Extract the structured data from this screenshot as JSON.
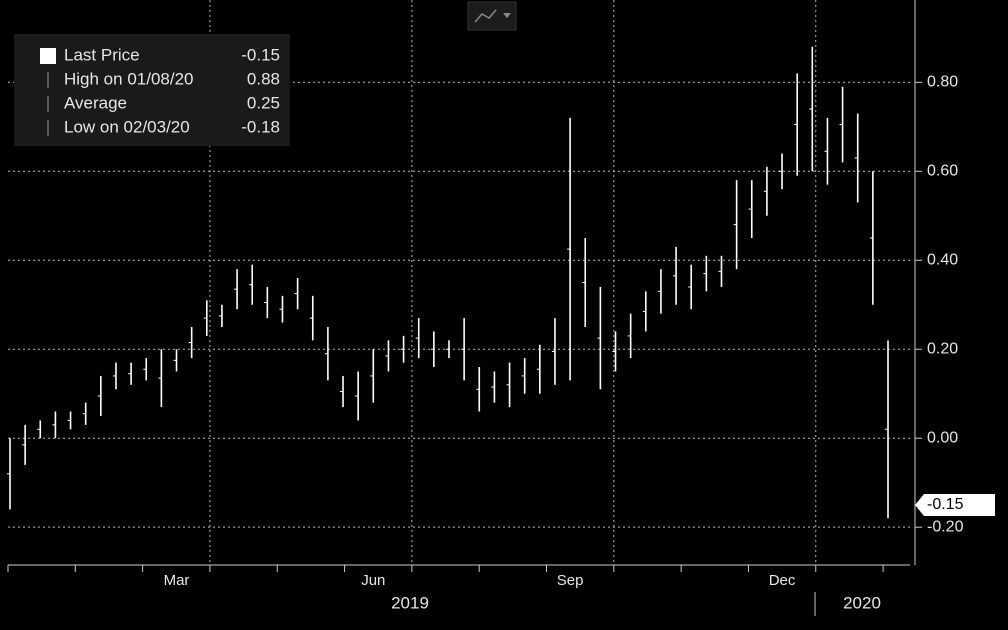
{
  "chart_data": {
    "type": "range-bar",
    "categories": [
      null,
      null,
      null,
      null,
      null,
      null,
      null,
      null,
      null,
      null,
      null,
      "Mar",
      null,
      null,
      null,
      null,
      null,
      null,
      null,
      null,
      null,
      null,
      null,
      null,
      "Jun",
      null,
      null,
      null,
      null,
      null,
      null,
      null,
      null,
      null,
      null,
      null,
      null,
      "Sep",
      null,
      null,
      null,
      null,
      null,
      null,
      null,
      null,
      null,
      null,
      null,
      null,
      null,
      "Dec",
      null,
      null,
      null,
      null,
      null,
      null,
      null
    ],
    "high": [
      0.0,
      0.03,
      0.04,
      0.06,
      0.06,
      0.08,
      0.14,
      0.17,
      0.17,
      0.18,
      0.2,
      0.2,
      0.25,
      0.31,
      0.3,
      0.38,
      0.39,
      0.34,
      0.32,
      0.36,
      0.32,
      0.25,
      0.14,
      0.15,
      0.2,
      0.22,
      0.23,
      0.27,
      0.24,
      0.22,
      0.27,
      0.16,
      0.15,
      0.17,
      0.18,
      0.21,
      0.27,
      0.72,
      0.45,
      0.34,
      0.24,
      0.28,
      0.33,
      0.38,
      0.43,
      0.39,
      0.41,
      0.41,
      0.58,
      0.58,
      0.61,
      0.64,
      0.82,
      0.88,
      0.72,
      0.79,
      0.73,
      0.6,
      0.22
    ],
    "low": [
      -0.16,
      -0.06,
      0.0,
      0.0,
      0.02,
      0.03,
      0.05,
      0.11,
      0.12,
      0.13,
      0.07,
      0.15,
      0.18,
      0.23,
      0.25,
      0.29,
      0.3,
      0.27,
      0.26,
      0.29,
      0.22,
      0.13,
      0.07,
      0.04,
      0.08,
      0.15,
      0.17,
      0.18,
      0.16,
      0.18,
      0.13,
      0.06,
      0.08,
      0.07,
      0.1,
      0.1,
      0.12,
      0.13,
      0.25,
      0.11,
      0.15,
      0.18,
      0.24,
      0.28,
      0.3,
      0.29,
      0.33,
      0.34,
      0.38,
      0.45,
      0.5,
      0.56,
      0.59,
      0.6,
      0.57,
      0.62,
      0.53,
      0.3,
      -0.18
    ],
    "color": "#ffffff",
    "years": [
      "2019",
      "2020"
    ],
    "ylim": [
      -0.285,
      0.985
    ],
    "yticks": [
      {
        "value": -0.2,
        "label": "-0.20"
      },
      {
        "value": 0,
        "label": "0.00"
      },
      {
        "value": 0.2,
        "label": "0.20"
      },
      {
        "value": 0.4,
        "label": "0.40"
      },
      {
        "value": 0.6,
        "label": "0.60"
      },
      {
        "value": 0.8,
        "label": "0.80"
      }
    ],
    "grid": true,
    "legend": [
      {
        "name": "Last Price",
        "value": -0.15
      },
      {
        "name": "High on 01/08/20",
        "value": 0.88
      },
      {
        "name": "Average",
        "value": 0.25
      },
      {
        "name": "Low on 02/03/20",
        "value": -0.18
      }
    ]
  }
}
